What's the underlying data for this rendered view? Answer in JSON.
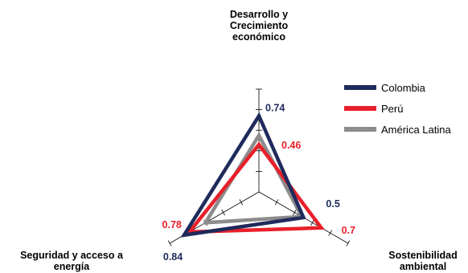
{
  "chart_data": {
    "type": "radar",
    "axes": [
      {
        "label_lines": [
          "Desarrollo y",
          "Crecimiento",
          "económico"
        ]
      },
      {
        "label_lines": [
          "Sostenibilidad",
          "ambiental"
        ]
      },
      {
        "label_lines": [
          "Seguridad y acceso a",
          "energía"
        ]
      }
    ],
    "range": [
      0,
      1
    ],
    "series": [
      {
        "name": "Colombia",
        "color": "#1f2a5c",
        "values": [
          0.74,
          0.5,
          0.84
        ],
        "value_labels": [
          "0.74",
          "0.5",
          "0.84"
        ]
      },
      {
        "name": "Perú",
        "color": "#e8202a",
        "values": [
          0.46,
          0.7,
          0.78
        ],
        "value_labels": [
          "0.46",
          "0.7",
          "0.78"
        ]
      },
      {
        "name": "América Latina",
        "color": "#8c8c8c",
        "values": [
          0.55,
          0.48,
          0.6
        ],
        "value_labels": []
      }
    ],
    "legend_position": "right"
  }
}
